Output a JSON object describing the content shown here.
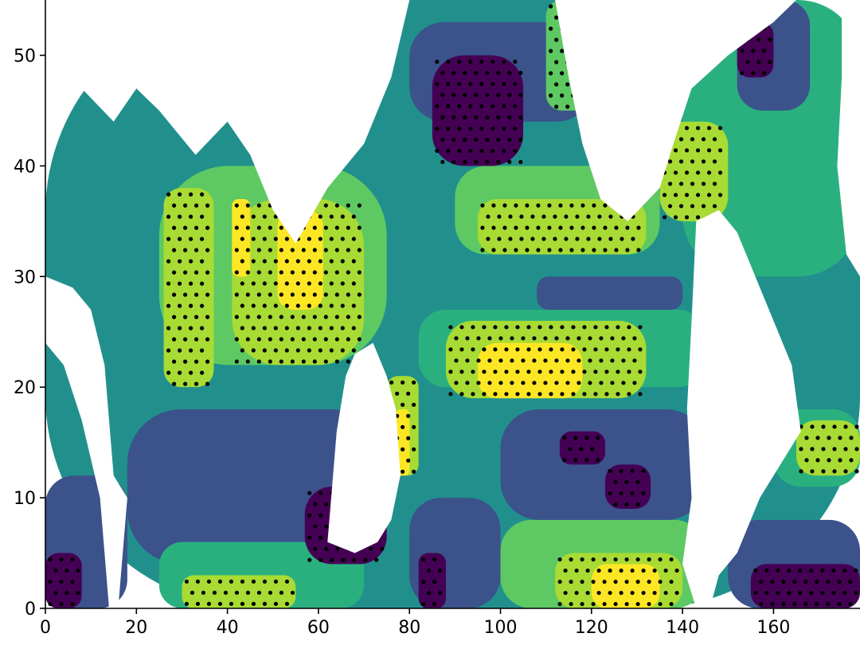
{
  "chart_data": {
    "type": "heatmap",
    "title": "",
    "xlabel": "",
    "ylabel": "",
    "xlim": [
      0,
      179
    ],
    "ylim": [
      0,
      55
    ],
    "x_ticks": [
      0,
      20,
      40,
      60,
      80,
      100,
      120,
      140,
      160
    ],
    "y_ticks": [
      0,
      10,
      20,
      30,
      40,
      50
    ],
    "colormap": [
      "#440154",
      "#3b528b",
      "#21908d",
      "#2ab07f",
      "#5ec962",
      "#a8db34",
      "#fde725"
    ],
    "land_color": "#ffffff",
    "stipple_color": "#000000",
    "levels": [
      {
        "x0": 0,
        "x1": 179,
        "y0": 0,
        "y1": 55,
        "level": 2
      },
      {
        "x0": 0,
        "x1": 18,
        "y0": 0,
        "y1": 12,
        "level": 1
      },
      {
        "x0": 0,
        "x1": 8,
        "y0": 0,
        "y1": 5,
        "level": 0,
        "stipple": true
      },
      {
        "x0": 18,
        "x1": 75,
        "y0": 4,
        "y1": 18,
        "level": 1
      },
      {
        "x0": 25,
        "x1": 70,
        "y0": 0,
        "y1": 6,
        "level": 3
      },
      {
        "x0": 30,
        "x1": 55,
        "y0": 0,
        "y1": 3,
        "level": 5,
        "stipple": true
      },
      {
        "x0": 57,
        "x1": 75,
        "y0": 4,
        "y1": 11,
        "level": 0,
        "stipple": true
      },
      {
        "x0": 80,
        "x1": 100,
        "y0": 0,
        "y1": 10,
        "level": 1
      },
      {
        "x0": 82,
        "x1": 88,
        "y0": 0,
        "y1": 5,
        "level": 0,
        "stipple": true
      },
      {
        "x0": 100,
        "x1": 145,
        "y0": 0,
        "y1": 8,
        "level": 4
      },
      {
        "x0": 112,
        "x1": 140,
        "y0": 0,
        "y1": 5,
        "level": 5,
        "stipple": true
      },
      {
        "x0": 120,
        "x1": 135,
        "y0": 0,
        "y1": 4,
        "level": 6
      },
      {
        "x0": 100,
        "x1": 145,
        "y0": 8,
        "y1": 18,
        "level": 1
      },
      {
        "x0": 113,
        "x1": 123,
        "y0": 13,
        "y1": 16,
        "level": 0,
        "stipple": true
      },
      {
        "x0": 123,
        "x1": 133,
        "y0": 9,
        "y1": 13,
        "level": 0,
        "stipple": true
      },
      {
        "x0": 150,
        "x1": 179,
        "y0": 0,
        "y1": 8,
        "level": 1
      },
      {
        "x0": 155,
        "x1": 179,
        "y0": 0,
        "y1": 4,
        "level": 0,
        "stipple": true
      },
      {
        "x0": 160,
        "x1": 179,
        "y0": 11,
        "y1": 18,
        "level": 3
      },
      {
        "x0": 165,
        "x1": 179,
        "y0": 12,
        "y1": 17,
        "level": 5,
        "stipple": true
      },
      {
        "x0": 82,
        "x1": 145,
        "y0": 20,
        "y1": 27,
        "level": 3
      },
      {
        "x0": 88,
        "x1": 132,
        "y0": 19,
        "y1": 26,
        "level": 5,
        "stipple": true
      },
      {
        "x0": 95,
        "x1": 118,
        "y0": 19,
        "y1": 24,
        "level": 6
      },
      {
        "x0": 95,
        "x1": 140,
        "y0": 27,
        "y1": 32,
        "level": 2
      },
      {
        "x0": 108,
        "x1": 140,
        "y0": 27,
        "y1": 30,
        "level": 1
      },
      {
        "x0": 90,
        "x1": 135,
        "y0": 32,
        "y1": 40,
        "level": 4
      },
      {
        "x0": 95,
        "x1": 132,
        "y0": 32,
        "y1": 37,
        "level": 5,
        "stipple": true
      },
      {
        "x0": 80,
        "x1": 120,
        "y0": 44,
        "y1": 53,
        "level": 1
      },
      {
        "x0": 85,
        "x1": 105,
        "y0": 40,
        "y1": 50,
        "level": 0,
        "stipple": true
      },
      {
        "x0": 110,
        "x1": 120,
        "y0": 45,
        "y1": 55,
        "level": 4,
        "stipple": true
      },
      {
        "x0": 25,
        "x1": 75,
        "y0": 22,
        "y1": 40,
        "level": 4
      },
      {
        "x0": 26,
        "x1": 37,
        "y0": 20,
        "y1": 38,
        "level": 5,
        "stipple": true
      },
      {
        "x0": 41,
        "x1": 70,
        "y0": 22,
        "y1": 37,
        "level": 5,
        "stipple": true
      },
      {
        "x0": 41,
        "x1": 45,
        "y0": 30,
        "y1": 37,
        "level": 6
      },
      {
        "x0": 51,
        "x1": 61,
        "y0": 27,
        "y1": 36,
        "level": 6
      },
      {
        "x0": 75,
        "x1": 82,
        "y0": 12,
        "y1": 21,
        "level": 5,
        "stipple": true
      },
      {
        "x0": 77,
        "x1": 80,
        "y0": 12,
        "y1": 18,
        "level": 6
      },
      {
        "x0": 140,
        "x1": 179,
        "y0": 30,
        "y1": 55,
        "level": 3
      },
      {
        "x0": 152,
        "x1": 168,
        "y0": 45,
        "y1": 55,
        "level": 1
      },
      {
        "x0": 152,
        "x1": 160,
        "y0": 48,
        "y1": 53,
        "level": 0,
        "stipple": true
      },
      {
        "x0": 135,
        "x1": 150,
        "y0": 35,
        "y1": 44,
        "level": 5,
        "stipple": true
      }
    ],
    "land": [
      [
        [
          0,
          55
        ],
        [
          165,
          55
        ],
        [
          160,
          53
        ],
        [
          150,
          50
        ],
        [
          142,
          47
        ],
        [
          138,
          42
        ],
        [
          135,
          38
        ],
        [
          128,
          35
        ],
        [
          122,
          37
        ],
        [
          118,
          42
        ],
        [
          115,
          48
        ],
        [
          112,
          55
        ],
        [
          80,
          55
        ],
        [
          76,
          48
        ],
        [
          70,
          42
        ],
        [
          62,
          38
        ],
        [
          55,
          33
        ],
        [
          50,
          36
        ],
        [
          45,
          41
        ],
        [
          40,
          44
        ],
        [
          33,
          41
        ],
        [
          25,
          45
        ],
        [
          20,
          47
        ],
        [
          15,
          44
        ],
        [
          8,
          47
        ],
        [
          0,
          45
        ]
      ],
      [
        [
          0,
          30
        ],
        [
          6,
          29
        ],
        [
          10,
          27
        ],
        [
          13,
          22
        ],
        [
          15,
          12
        ],
        [
          18,
          10
        ],
        [
          16,
          0
        ],
        [
          14,
          0
        ],
        [
          12,
          10
        ],
        [
          8,
          17
        ],
        [
          4,
          22
        ],
        [
          0,
          24
        ]
      ],
      [
        [
          143,
          35
        ],
        [
          148,
          36
        ],
        [
          152,
          34
        ],
        [
          158,
          28
        ],
        [
          164,
          22
        ],
        [
          166,
          16
        ],
        [
          163,
          14
        ],
        [
          157,
          10
        ],
        [
          152,
          5
        ],
        [
          148,
          3
        ],
        [
          146,
          0
        ],
        [
          143,
          0
        ],
        [
          140,
          4
        ],
        [
          142,
          10
        ],
        [
          141,
          18
        ],
        [
          142,
          26
        ]
      ],
      [
        [
          62,
          6
        ],
        [
          64,
          16
        ],
        [
          66,
          21
        ],
        [
          68,
          23
        ],
        [
          72,
          24
        ],
        [
          75,
          21
        ],
        [
          77,
          18
        ],
        [
          78,
          12
        ],
        [
          76,
          8
        ],
        [
          73,
          6
        ],
        [
          68,
          5
        ]
      ],
      [
        [
          175,
          55
        ],
        [
          179,
          55
        ],
        [
          179,
          30
        ],
        [
          176,
          32
        ],
        [
          174,
          40
        ],
        [
          175,
          48
        ]
      ],
      [
        [
          130,
          55
        ],
        [
          134,
          52
        ],
        [
          134,
          47
        ],
        [
          130,
          50
        ]
      ]
    ]
  }
}
